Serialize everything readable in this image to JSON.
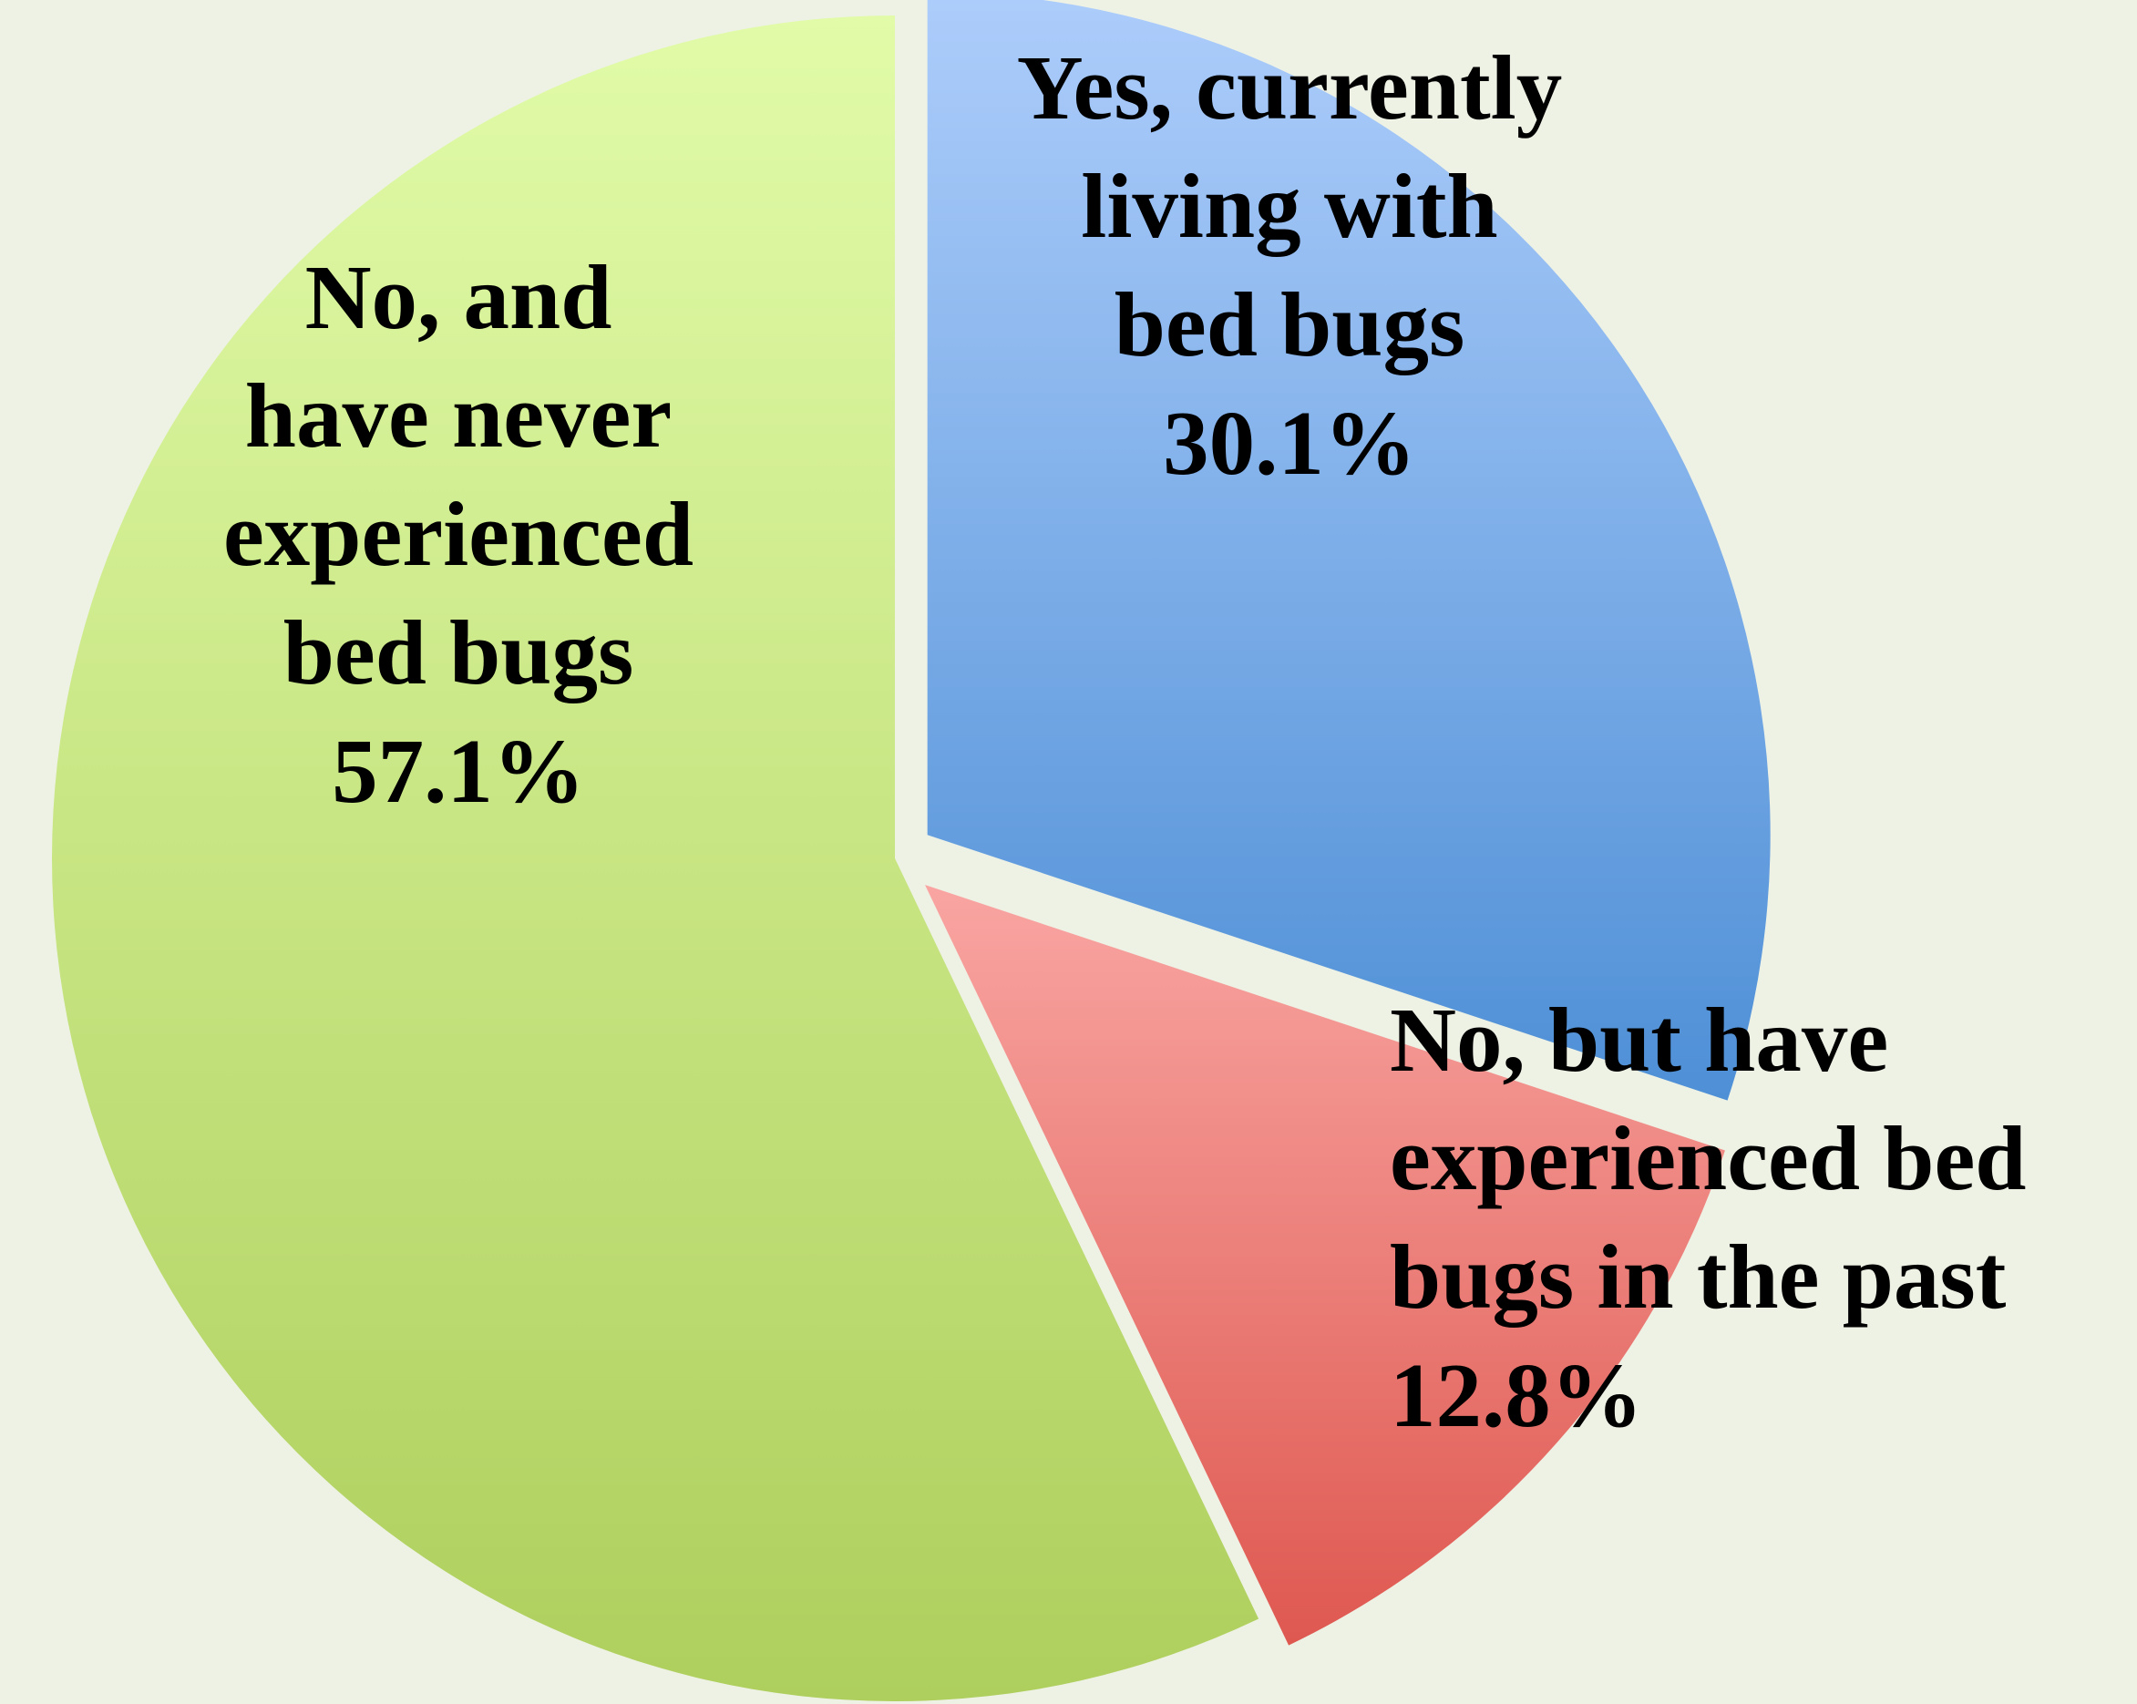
{
  "chart_data": {
    "type": "pie",
    "slices": [
      {
        "label_lines": [
          "Yes, currently",
          "living with",
          "bed bugs"
        ],
        "value": 30.1,
        "value_label": "30.1%",
        "colors": [
          "#adcdfb",
          "#4e8fd6"
        ],
        "exploded": true
      },
      {
        "label_lines": [
          "No, but have",
          "experienced bed",
          "bugs in the past"
        ],
        "value": 12.8,
        "value_label": "12.8%",
        "colors": [
          "#f9a5a2",
          "#de5850"
        ],
        "exploded": true
      },
      {
        "label_lines": [
          "No, and",
          "have never",
          "experienced",
          "bed bugs"
        ],
        "value": 57.1,
        "value_label": "57.1%",
        "colors": [
          "#e1fba8",
          "#aecf5d"
        ],
        "exploded": false
      }
    ],
    "start_angle": "12 o'clock",
    "direction": "clockwise",
    "legend": "none",
    "background_color": "#eef2e5"
  }
}
